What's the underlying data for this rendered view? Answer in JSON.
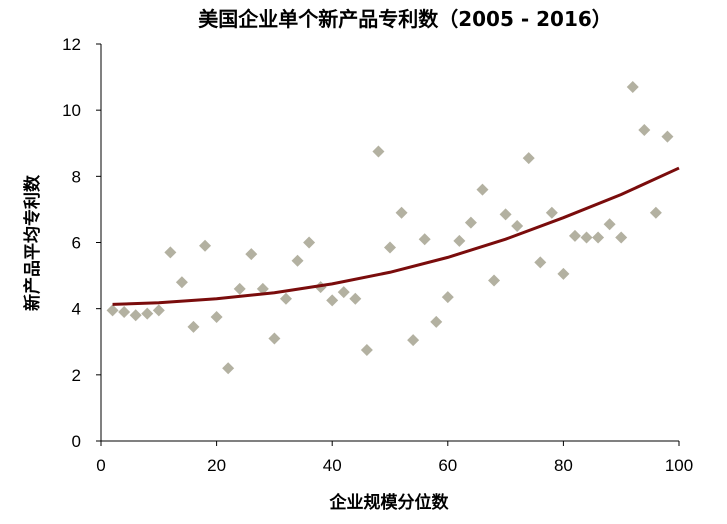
{
  "chart_data": {
    "type": "scatter",
    "title": "美国企业单个新产品专利数（2005 - 2016）",
    "xlabel": "企业规模分位数",
    "ylabel": "新产品平均专利数",
    "xlim": [
      0,
      100
    ],
    "ylim": [
      0,
      12
    ],
    "xticks": [
      "0",
      "20",
      "40",
      "60",
      "80",
      "100"
    ],
    "yticks": [
      "0",
      "2",
      "4",
      "6",
      "8",
      "10",
      "12"
    ],
    "grid": false,
    "legend": "none",
    "marker_color": "#b3b1a1",
    "fit_color": "#7a0c0c",
    "points": [
      {
        "x": 2,
        "y": 3.95
      },
      {
        "x": 4,
        "y": 3.9
      },
      {
        "x": 6,
        "y": 3.8
      },
      {
        "x": 8,
        "y": 3.85
      },
      {
        "x": 10,
        "y": 3.95
      },
      {
        "x": 12,
        "y": 5.7
      },
      {
        "x": 14,
        "y": 4.8
      },
      {
        "x": 16,
        "y": 3.45
      },
      {
        "x": 18,
        "y": 5.9
      },
      {
        "x": 20,
        "y": 3.75
      },
      {
        "x": 22,
        "y": 2.2
      },
      {
        "x": 24,
        "y": 4.6
      },
      {
        "x": 26,
        "y": 5.65
      },
      {
        "x": 28,
        "y": 4.6
      },
      {
        "x": 30,
        "y": 3.1
      },
      {
        "x": 32,
        "y": 4.3
      },
      {
        "x": 34,
        "y": 5.45
      },
      {
        "x": 36,
        "y": 6.0
      },
      {
        "x": 38,
        "y": 4.65
      },
      {
        "x": 40,
        "y": 4.25
      },
      {
        "x": 42,
        "y": 4.5
      },
      {
        "x": 44,
        "y": 4.3
      },
      {
        "x": 46,
        "y": 2.75
      },
      {
        "x": 48,
        "y": 8.75
      },
      {
        "x": 50,
        "y": 5.85
      },
      {
        "x": 52,
        "y": 6.9
      },
      {
        "x": 54,
        "y": 3.05
      },
      {
        "x": 56,
        "y": 6.1
      },
      {
        "x": 58,
        "y": 3.6
      },
      {
        "x": 60,
        "y": 4.35
      },
      {
        "x": 62,
        "y": 6.05
      },
      {
        "x": 64,
        "y": 6.6
      },
      {
        "x": 66,
        "y": 7.6
      },
      {
        "x": 68,
        "y": 4.85
      },
      {
        "x": 70,
        "y": 6.85
      },
      {
        "x": 72,
        "y": 6.5
      },
      {
        "x": 74,
        "y": 8.55
      },
      {
        "x": 76,
        "y": 5.4
      },
      {
        "x": 78,
        "y": 6.9
      },
      {
        "x": 80,
        "y": 5.05
      },
      {
        "x": 82,
        "y": 6.2
      },
      {
        "x": 84,
        "y": 6.15
      },
      {
        "x": 86,
        "y": 6.15
      },
      {
        "x": 88,
        "y": 6.55
      },
      {
        "x": 90,
        "y": 6.15
      },
      {
        "x": 92,
        "y": 10.7
      },
      {
        "x": 94,
        "y": 9.4
      },
      {
        "x": 96,
        "y": 6.9
      },
      {
        "x": 98,
        "y": 9.2
      }
    ],
    "fit_line": [
      {
        "x": 2,
        "y": 4.13
      },
      {
        "x": 10,
        "y": 4.18
      },
      {
        "x": 20,
        "y": 4.3
      },
      {
        "x": 30,
        "y": 4.48
      },
      {
        "x": 40,
        "y": 4.75
      },
      {
        "x": 50,
        "y": 5.1
      },
      {
        "x": 60,
        "y": 5.55
      },
      {
        "x": 70,
        "y": 6.1
      },
      {
        "x": 80,
        "y": 6.75
      },
      {
        "x": 90,
        "y": 7.45
      },
      {
        "x": 100,
        "y": 8.25
      }
    ]
  }
}
